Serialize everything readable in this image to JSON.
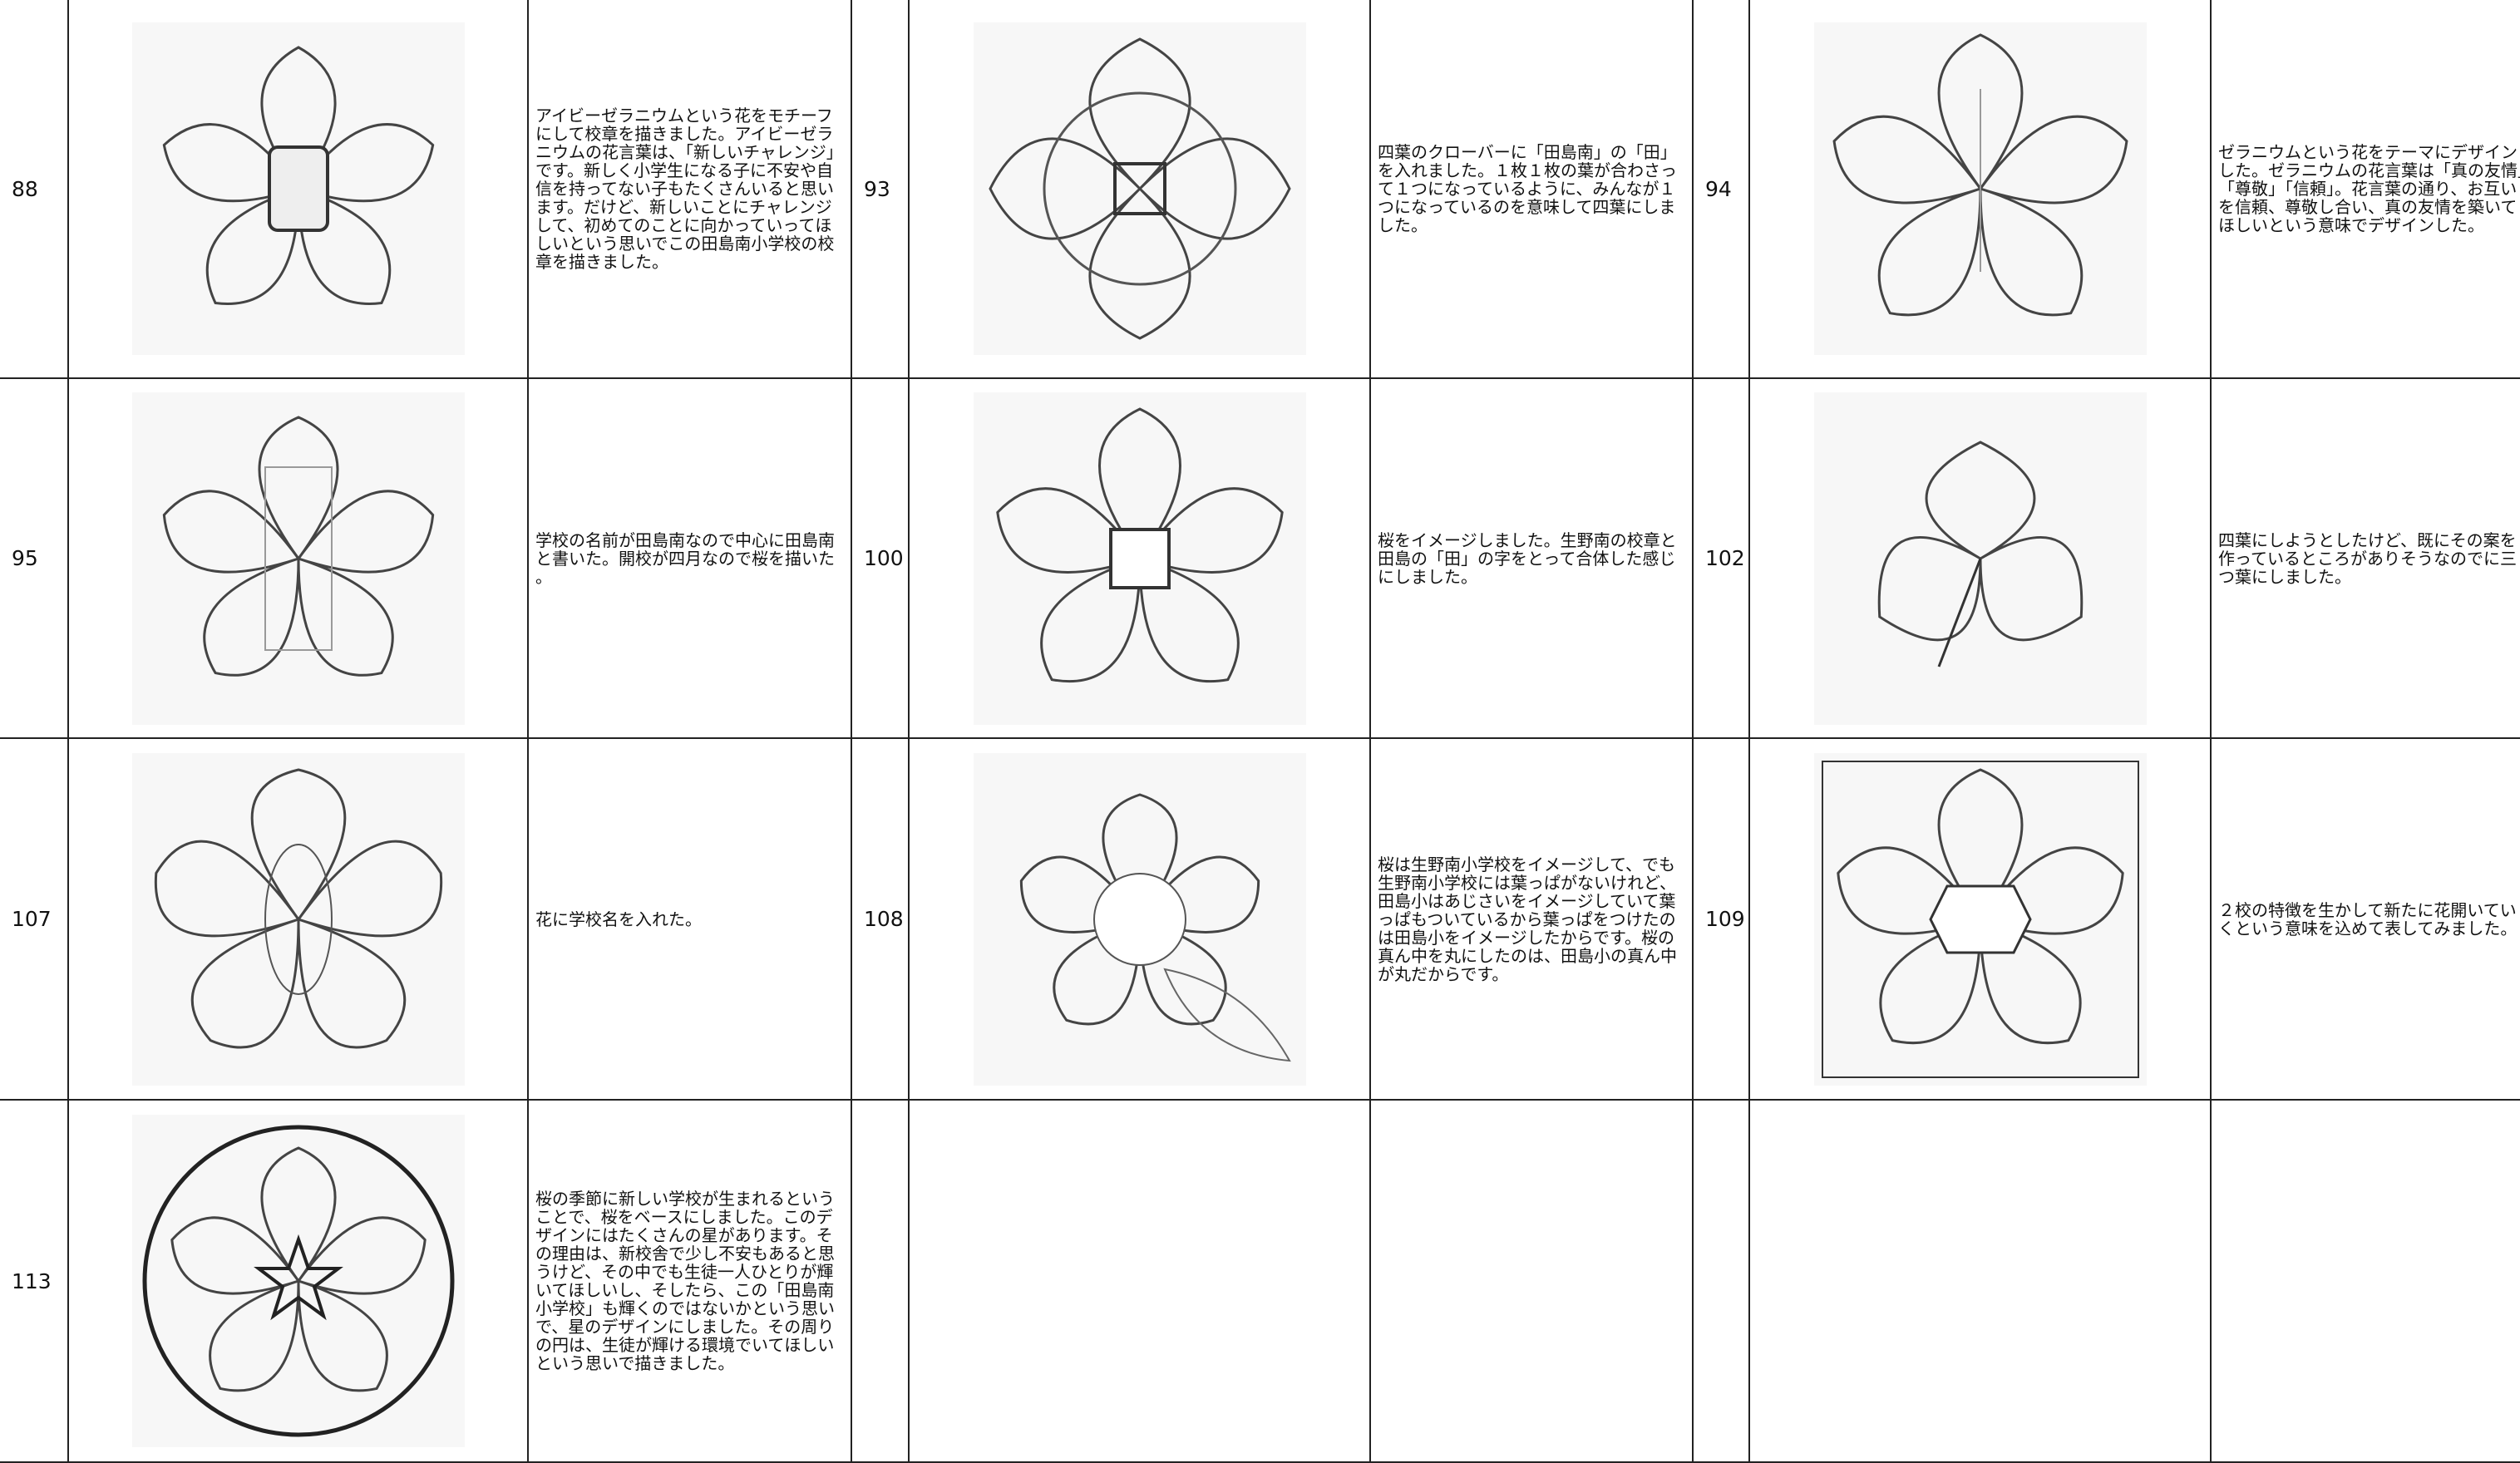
{
  "table": {
    "rows": [
      [
        {
          "number": "88",
          "text": "アイビーゼラニウムという花をモチーフにして校章を描きました。アイビーゼラニウムの花言葉は、「新しいチャレンジ」です。新しく小学生になる子に不安や自信を持ってない子もたくさんいると思います。だけど、新しいことにチャレンジして、初めてのことに向かっていってほしいという思いでこの田島南小学校の校章を描きました。"
        },
        {
          "number": "93",
          "text": "四葉のクローバーに「田島南」の「田」を入れました。１枚１枚の葉が合わさって１つになっているように、みんなが１つになっているのを意味して四葉にしました。"
        },
        {
          "number": "94",
          "text": "ゼラニウムという花をテーマにデザインした。ゼラニウムの花言葉は「真の友情」「尊敬」「信頼」。花言葉の通り、お互いを信頼、尊敬し合い、真の友情を築いてほしいという意味でデザインした。"
        }
      ],
      [
        {
          "number": "95",
          "text": "学校の名前が田島南なので中心に田島南と書いた。開校が四月なので桜を描いた。"
        },
        {
          "number": "100",
          "text": "桜をイメージしました。生野南の校章と田島の「田」の字をとって合体した感じにしました。"
        },
        {
          "number": "102",
          "text": "四葉にしようとしたけど、既にその案を作っているところがありそうなのでに三つ葉にしました。"
        }
      ],
      [
        {
          "number": "107",
          "text": "花に学校名を入れた。"
        },
        {
          "number": "108",
          "text": "桜は生野南小学校をイメージして、でも生野南小学校には葉っぱがないけれど、田島小はあじさいをイメージしていて葉っぱもついているから葉っぱをつけたのは田島小をイメージしたからです。桜の真ん中を丸にしたのは、田島小の真ん中が丸だからです。"
        },
        {
          "number": "109",
          "text": "２校の特徴を生かして新たに花開いていくという意味を込めて表してみました。"
        }
      ],
      [
        {
          "number": "113",
          "text": "桜の季節に新しい学校が生まれるということで、桜をベースにしました。このデザインにはたくさんの星があります。その理由は、新校舎で少し不安もあると思うけど、その中でも生徒一人ひとりが輝いてほしいし、そしたら、この「田島南小学校」も輝くのではないかという思いで、星のデザインにしました。その周りの円は、生徒が輝ける環境でいてほしいという思いで描きました。"
        }
      ]
    ]
  }
}
